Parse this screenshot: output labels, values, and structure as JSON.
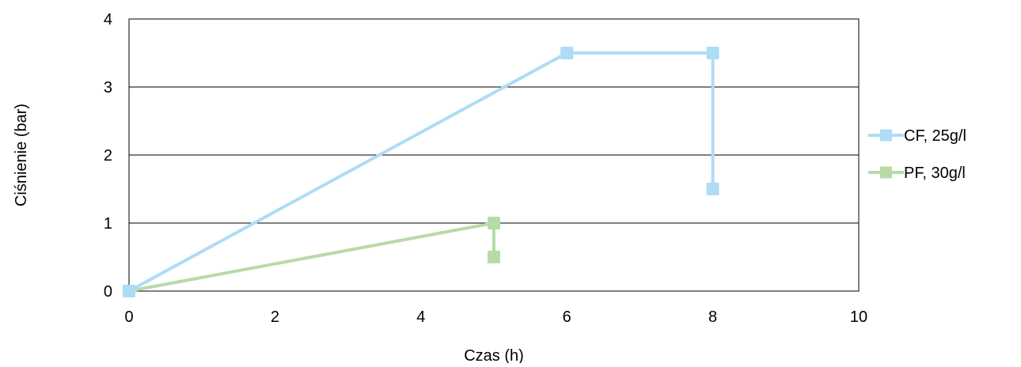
{
  "chart_data": {
    "type": "line",
    "title": "",
    "xlabel": "Czas (h)",
    "ylabel": "Ciśnienie (bar)",
    "xlim": [
      0,
      10
    ],
    "ylim": [
      0,
      4
    ],
    "x_ticks": [
      0,
      2,
      4,
      6,
      8,
      10
    ],
    "y_ticks": [
      0,
      1,
      2,
      3,
      4
    ],
    "x_tick_labels": [
      "0",
      "2",
      "4",
      "6",
      "8",
      "10"
    ],
    "y_tick_labels": [
      "0",
      "1",
      "2",
      "3",
      "4"
    ],
    "grid": "horizontal",
    "legend_position": "right",
    "series": [
      {
        "name": "CF, 25g/l",
        "color": "#AEDCF5",
        "marker": "square",
        "points": [
          {
            "x": 0,
            "y": 0
          },
          {
            "x": 6,
            "y": 3.5
          },
          {
            "x": 8,
            "y": 3.5
          },
          {
            "x": 8,
            "y": 1.5
          }
        ]
      },
      {
        "name": "PF, 30g/l",
        "color": "#B7DBA6",
        "marker": "square",
        "points": [
          {
            "x": 0,
            "y": 0
          },
          {
            "x": 5,
            "y": 1
          },
          {
            "x": 5,
            "y": 0.5
          }
        ]
      }
    ]
  }
}
